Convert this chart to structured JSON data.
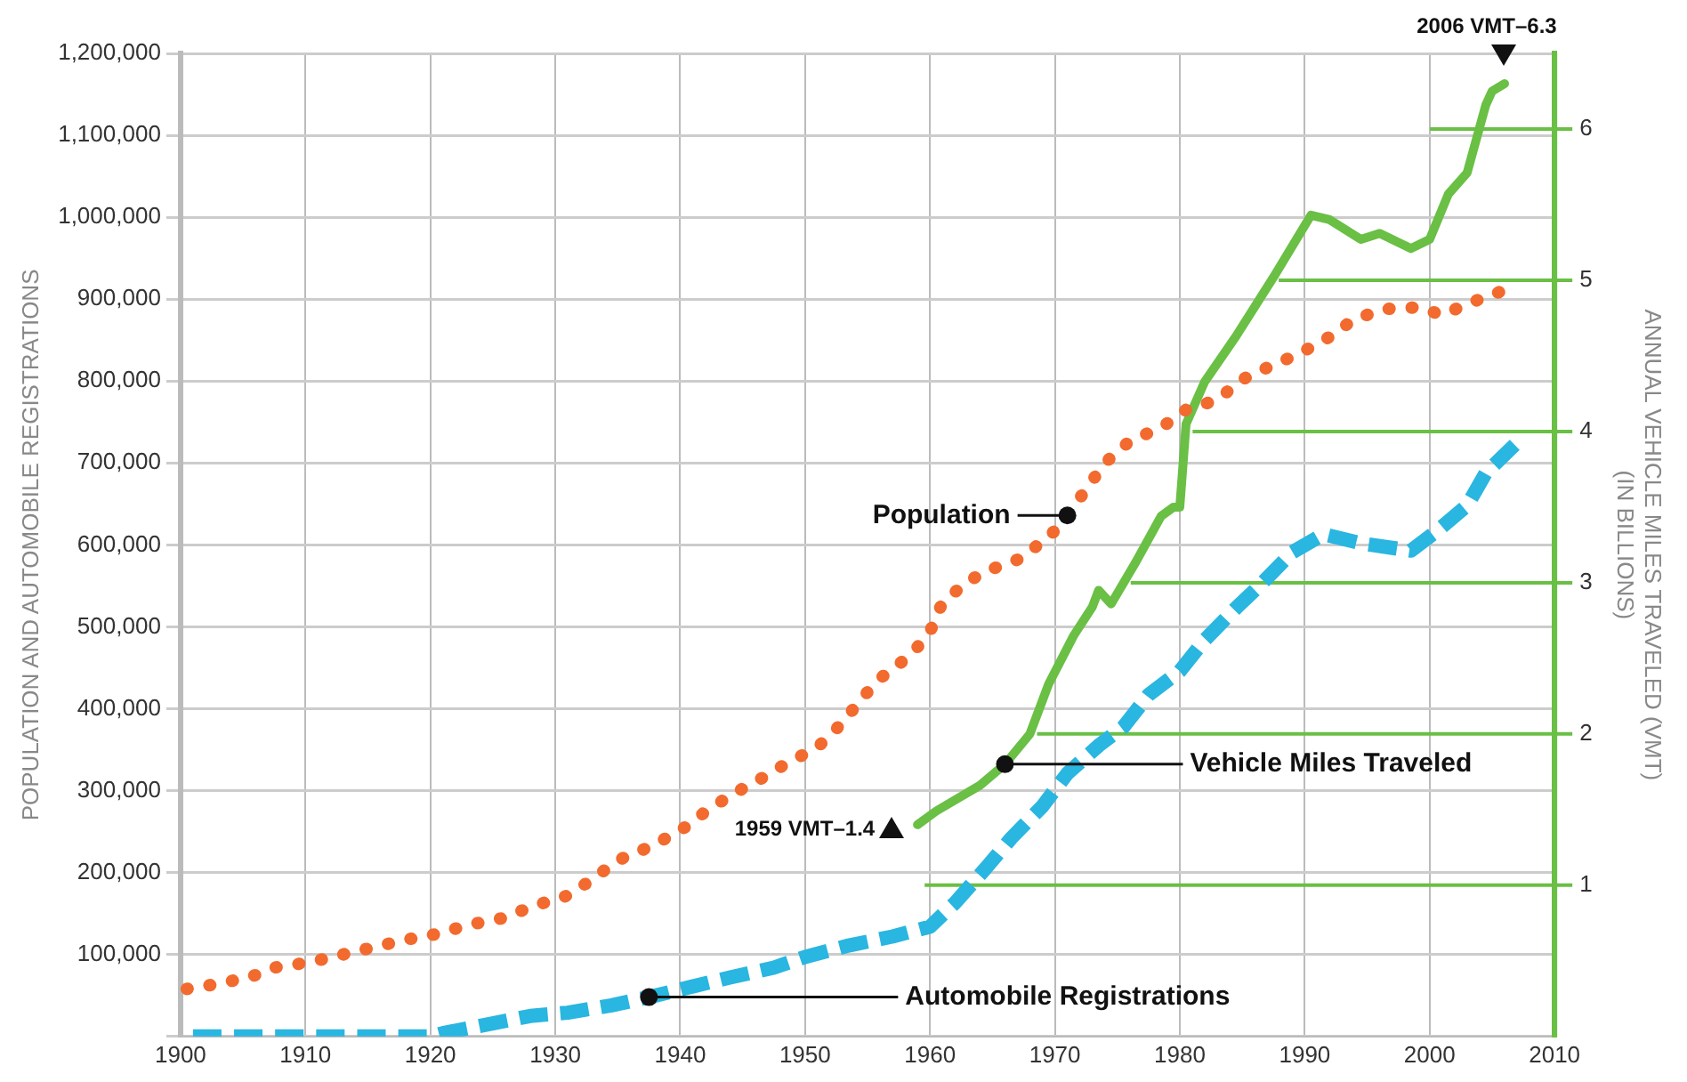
{
  "chart_data": {
    "type": "line",
    "ylabel": "POPULATION AND AUTOMOBILE REGISTRATIONS",
    "y2label": "ANNUAL VEHICLE MILES TRAVELED (VMT)\n(IN BILLIONS)",
    "xlim": [
      1900,
      2010
    ],
    "xticks": [
      1900,
      1910,
      1920,
      1930,
      1940,
      1950,
      1960,
      1970,
      1980,
      1990,
      2000,
      2010
    ],
    "ylim": [
      0,
      1200000
    ],
    "yticks": [
      {
        "value": 0,
        "label": null
      },
      {
        "value": 100000,
        "label": "100,000"
      },
      {
        "value": 200000,
        "label": "200,000"
      },
      {
        "value": 300000,
        "label": "300,000"
      },
      {
        "value": 400000,
        "label": "400,000"
      },
      {
        "value": 500000,
        "label": "500,000"
      },
      {
        "value": 600000,
        "label": "600,000"
      },
      {
        "value": 700000,
        "label": "700,000"
      },
      {
        "value": 800000,
        "label": "800,000"
      },
      {
        "value": 900000,
        "label": "900,000"
      },
      {
        "value": 1000000,
        "label": "1,000,000"
      },
      {
        "value": 1100000,
        "label": "1,100,000"
      },
      {
        "value": 1200000,
        "label": "1,200,000"
      }
    ],
    "y2lim": [
      0,
      6.5
    ],
    "y2ticks": [
      1,
      2,
      3,
      4,
      5,
      6
    ],
    "grid": true,
    "marker": "none",
    "series": [
      {
        "name": "Population",
        "color": "#f26a2e",
        "line_style": "dotted",
        "x": [
          1900.5,
          1902.5,
          1905.5,
          1907.5,
          1910.5,
          1913,
          1915.5,
          1918,
          1920.5,
          1923,
          1926,
          1928,
          1931,
          1933,
          1935,
          1937.5,
          1940,
          1942,
          1944,
          1946.5,
          1948.5,
          1951,
          1953,
          1954.5,
          1956,
          1958.5,
          1960,
          1961,
          1963,
          1964.5,
          1967,
          1969.5,
          1971,
          1974,
          1976,
          1978.5,
          1980.5,
          1983,
          1985,
          1987.5,
          1989.5,
          1992,
          1994,
          1996.5,
          1999,
          2001,
          2003.5,
          2006
        ],
        "values": [
          58000,
          63000,
          72000,
          84000,
          91000,
          100000,
          109000,
          118000,
          125000,
          136000,
          145000,
          158000,
          172000,
          192000,
          215000,
          231000,
          251000,
          274000,
          294000,
          315000,
          333000,
          353000,
          383000,
          412000,
          437000,
          466000,
          494000,
          530000,
          555000,
          568000,
          582000,
          609000,
          636000,
          700000,
          727000,
          743000,
          765000,
          777000,
          802000,
          820000,
          833000,
          854000,
          876000,
          888000,
          890000,
          881000,
          897000,
          911000
        ]
      },
      {
        "name": "Automobile Registrations",
        "color": "#29b6e0",
        "line_style": "dashed",
        "x": [
          1901,
          1905,
          1910,
          1915,
          1920,
          1921,
          1925,
          1928,
          1931,
          1934.5,
          1937.5,
          1941,
          1944,
          1947.5,
          1950,
          1953.5,
          1957,
          1960,
          1962,
          1964.5,
          1966.5,
          1969,
          1971,
          1973.5,
          1975.5,
          1977.5,
          1980,
          1982,
          1984.5,
          1986.5,
          1989,
          1991.5,
          1994.5,
          1998.5,
          2000.5,
          2003,
          2004.5,
          2007
        ],
        "values": [
          0,
          0,
          0,
          0,
          0,
          4000,
          16000,
          25000,
          29000,
          38000,
          48000,
          61000,
          72000,
          84000,
          97000,
          111000,
          122000,
          134000,
          163000,
          206000,
          242000,
          281000,
          321000,
          355000,
          378000,
          417000,
          446000,
          484000,
          523000,
          552000,
          591000,
          613000,
          602000,
          593000,
          616000,
          648000,
          688000,
          725000
        ]
      },
      {
        "name": "Vehicle Miles Traveled",
        "color": "#6abf45",
        "line_style": "solid",
        "axis": "y2",
        "x": [
          1959,
          1960.5,
          1964,
          1966,
          1968,
          1969.5,
          1971.5,
          1973,
          1973.5,
          1974.5,
          1976.5,
          1978.5,
          1979.5,
          1980,
          1980.5,
          1982,
          1984.5,
          1987.5,
          1990.5,
          1992,
          1994.5,
          1996,
          1998.5,
          2000,
          2001.5,
          2003,
          2004.5,
          2005,
          2006
        ],
        "values": [
          1.4,
          1.49,
          1.66,
          1.8,
          2.0,
          2.33,
          2.65,
          2.84,
          2.95,
          2.86,
          3.14,
          3.44,
          3.5,
          3.5,
          4.05,
          4.33,
          4.63,
          5.02,
          5.43,
          5.4,
          5.27,
          5.31,
          5.21,
          5.27,
          5.57,
          5.71,
          6.16,
          6.25,
          6.3
        ]
      }
    ],
    "ref_lines": [
      {
        "axis": "y2",
        "value": 1,
        "color": "#6abf45"
      },
      {
        "axis": "y2",
        "value": 2,
        "color": "#6abf45"
      },
      {
        "axis": "y2",
        "value": 3,
        "color": "#6abf45"
      },
      {
        "axis": "y2",
        "value": 4,
        "color": "#6abf45"
      },
      {
        "axis": "y2",
        "value": 5,
        "color": "#6abf45"
      },
      {
        "axis": "y2",
        "value": 6,
        "color": "#6abf45"
      }
    ],
    "annotations": [
      "1959 VMT–1.4",
      "2006 VMT–6.3"
    ]
  }
}
